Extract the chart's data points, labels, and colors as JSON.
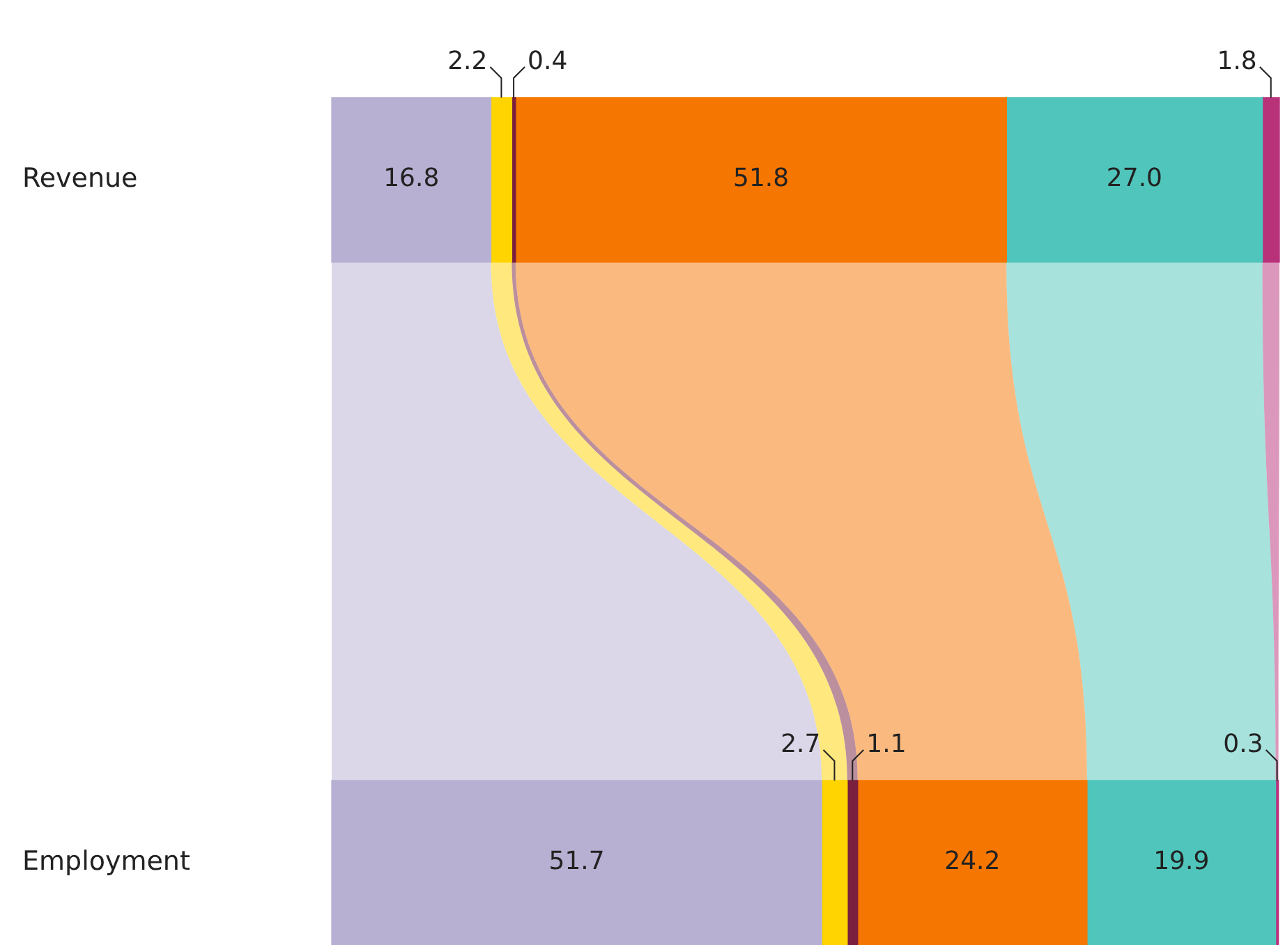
{
  "chart_data": {
    "type": "bar",
    "orientation": "horizontal",
    "stacked": true,
    "categories": [
      "Revenue",
      "Employment"
    ],
    "series": [
      {
        "color": "#b7b0d2",
        "values": [
          16.8,
          51.7
        ],
        "value_labels": [
          "16.8",
          "51.7"
        ]
      },
      {
        "color": "#ffd400",
        "values": [
          2.2,
          2.7
        ],
        "value_labels": [
          "2.2",
          "2.7"
        ]
      },
      {
        "color": "#7a1f3d",
        "values": [
          0.4,
          1.1
        ],
        "value_labels": [
          "0.4",
          "1.1"
        ]
      },
      {
        "color": "#f57600",
        "values": [
          51.8,
          24.2
        ],
        "value_labels": [
          "51.8",
          "24.2"
        ]
      },
      {
        "color": "#50c5bb",
        "values": [
          27.0,
          19.9
        ],
        "value_labels": [
          "27.0",
          "19.9"
        ]
      },
      {
        "color": "#b8327a",
        "values": [
          1.8,
          0.3
        ],
        "value_labels": [
          "1.8",
          "0.3"
        ]
      }
    ],
    "xlim": [
      0,
      100
    ],
    "tick_labels": "y",
    "grid": false,
    "legend": false
  }
}
